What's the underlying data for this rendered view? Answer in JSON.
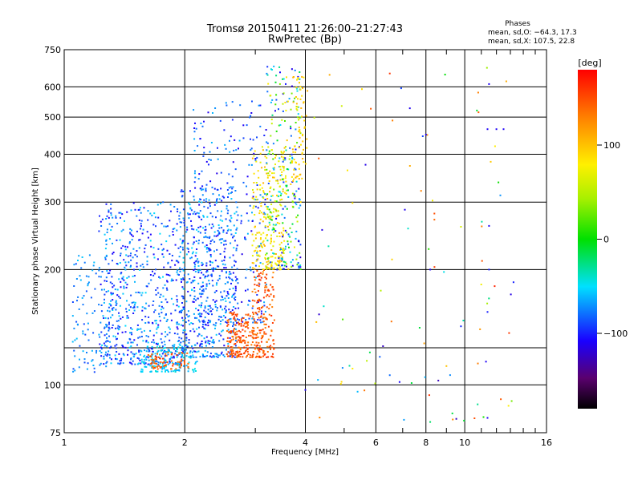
{
  "chart_data": {
    "type": "scatter",
    "title": "Tromsø 20150411 21:26:00–21:27:43",
    "subtitle": "RwPretec (Bp)",
    "xlabel": "Frequency [MHz]",
    "ylabel": "Stationary phase Virtual Height [km]",
    "x_scale": "log",
    "y_scale": "log",
    "xlim": [
      1,
      16
    ],
    "ylim": [
      75,
      750
    ],
    "x_ticks": [
      1,
      2,
      4,
      6,
      8,
      10,
      16
    ],
    "x_tick_labels": [
      "1",
      "2",
      "4",
      "6",
      "8",
      "10",
      "16"
    ],
    "x_minor_ticks": [
      3,
      5,
      7,
      9,
      11,
      12,
      13,
      14,
      15
    ],
    "y_ticks": [
      75,
      100,
      200,
      300,
      400,
      500,
      600,
      750
    ],
    "y_tick_labels": [
      "75",
      "100",
      "200",
      "300",
      "400",
      "500",
      "600",
      "750"
    ],
    "y_extra_gridlines": [
      125
    ],
    "grid": true,
    "legend": {
      "heading": "Phases",
      "lines": [
        "mean, sd,O: −64.3, 17.3",
        "mean, sd,X: 107.5, 22.8"
      ]
    },
    "colorbar": {
      "label": "[deg]",
      "range": [
        -180,
        180
      ],
      "ticks": [
        -100,
        0,
        100
      ],
      "tick_labels": [
        "−100",
        "0",
        "100"
      ]
    },
    "clusters": [
      {
        "f": [
          1.05,
          1.28
        ],
        "h": [
          108,
          220
        ],
        "n": 90,
        "phase": [
          -90,
          -55
        ]
      },
      {
        "f": [
          1.22,
          2.0
        ],
        "h": [
          113,
          300
        ],
        "n": 650,
        "phase": [
          -110,
          -50
        ]
      },
      {
        "f": [
          1.55,
          2.15
        ],
        "h": [
          108,
          128
        ],
        "n": 140,
        "phase": [
          -70,
          -40
        ]
      },
      {
        "f": [
          1.62,
          2.05
        ],
        "h": [
          110,
          122
        ],
        "n": 70,
        "phase": [
          130,
          160
        ]
      },
      {
        "f": [
          1.95,
          2.7
        ],
        "h": [
          118,
          330
        ],
        "n": 480,
        "phase": [
          -110,
          -50
        ]
      },
      {
        "f": [
          2.1,
          3.2
        ],
        "h": [
          145,
          560
        ],
        "n": 320,
        "phase": [
          -115,
          -60
        ]
      },
      {
        "f": [
          2.55,
          3.0
        ],
        "h": [
          118,
          155
        ],
        "n": 180,
        "phase": [
          130,
          165
        ]
      },
      {
        "f": [
          2.95,
          3.35
        ],
        "h": [
          118,
          200
        ],
        "n": 170,
        "phase": [
          125,
          165
        ]
      },
      {
        "f": [
          2.95,
          3.55
        ],
        "h": [
          200,
          420
        ],
        "n": 220,
        "phase": [
          60,
          110
        ]
      },
      {
        "f": [
          3.2,
          3.9
        ],
        "h": [
          200,
          680
        ],
        "n": 280,
        "phase": [
          -120,
          100
        ]
      },
      {
        "f": [
          3.7,
          4.05
        ],
        "h": [
          340,
          640
        ],
        "n": 70,
        "phase": [
          80,
          110
        ]
      },
      {
        "f": [
          4.2,
          13.5
        ],
        "h": [
          80,
          680
        ],
        "n": 85,
        "phase": [
          -130,
          170
        ]
      }
    ],
    "points": [
      {
        "x": 6.5,
        "y": 650,
        "phase": 160
      },
      {
        "x": 6.6,
        "y": 490,
        "phase": 130
      },
      {
        "x": 8.4,
        "y": 280,
        "phase": 150
      },
      {
        "x": 8.4,
        "y": 270,
        "phase": 140
      },
      {
        "x": 11.5,
        "y": 610,
        "phase": -110
      },
      {
        "x": 12.7,
        "y": 620,
        "phase": 110
      },
      {
        "x": 11.4,
        "y": 465,
        "phase": -110
      },
      {
        "x": 12.0,
        "y": 465,
        "phase": -110
      },
      {
        "x": 12.5,
        "y": 465,
        "phase": -110
      },
      {
        "x": 11.5,
        "y": 260,
        "phase": -110
      },
      {
        "x": 11.5,
        "y": 200,
        "phase": -100
      },
      {
        "x": 11.4,
        "y": 155,
        "phase": -100
      },
      {
        "x": 11.3,
        "y": 115,
        "phase": -110
      },
      {
        "x": 11.4,
        "y": 82,
        "phase": -110
      },
      {
        "x": 6.5,
        "y": 106,
        "phase": -80
      },
      {
        "x": 5.4,
        "y": 96,
        "phase": -60
      },
      {
        "x": 4.0,
        "y": 97,
        "phase": -110
      },
      {
        "x": 4.3,
        "y": 103,
        "phase": -60
      },
      {
        "x": 9.0,
        "y": 112,
        "phase": 100
      },
      {
        "x": 8.2,
        "y": 80,
        "phase": -20
      },
      {
        "x": 8.2,
        "y": 200,
        "phase": -110
      },
      {
        "x": 8.0,
        "y": 450,
        "phase": -110
      }
    ]
  }
}
